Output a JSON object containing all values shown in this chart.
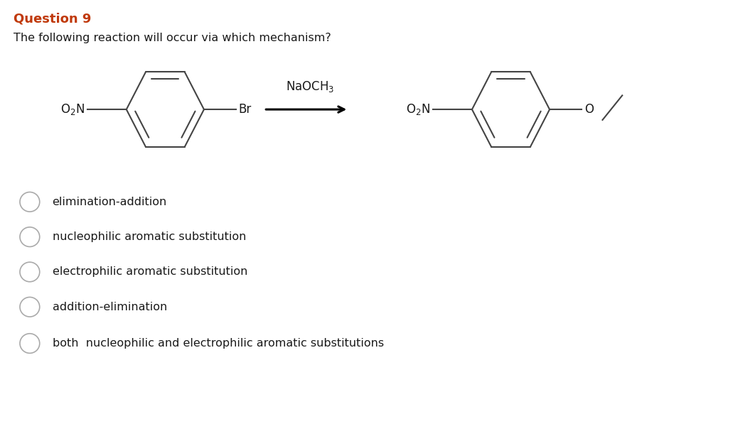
{
  "title": "Question 9",
  "title_color": "#c0390b",
  "subtitle": "The following reaction will occur via which mechanism?",
  "bg_color": "#ffffff",
  "text_color": "#1a1a1a",
  "options": [
    "elimination-addition",
    "nucleophilic aromatic substitution",
    "electrophilic aromatic substitution",
    "addition-elimination",
    "both  nucleophilic and electrophilic aromatic substitutions"
  ],
  "option_colors": [
    "#1a1a1a",
    "#1a1a1a",
    "#1a1a1a",
    "#1a1a1a",
    "#1a1a1a"
  ],
  "fig_width": 10.62,
  "fig_height": 6.14,
  "ring_color": "#444444",
  "line_width": 1.5
}
